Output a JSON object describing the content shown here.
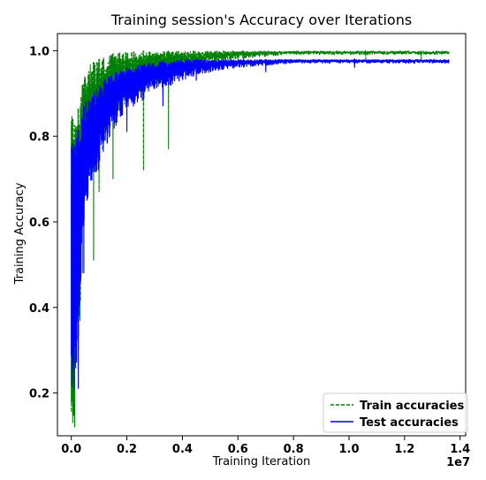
{
  "chart_data": {
    "type": "line",
    "title": "Training session's Accuracy over Iterations",
    "xlabel": "Training Iteration",
    "ylabel": "Training Accuracy",
    "x_offset_label": "1e7",
    "xlim": [
      -0.05,
      1.42
    ],
    "ylim": [
      0.1,
      1.04
    ],
    "x_ticks": [
      0.0,
      0.2,
      0.4,
      0.6,
      0.8,
      1.0,
      1.2,
      1.4
    ],
    "x_tick_labels": [
      "0.0",
      "0.2",
      "0.4",
      "0.6",
      "0.8",
      "1.0",
      "1.2",
      "1.4"
    ],
    "y_ticks": [
      0.2,
      0.4,
      0.6,
      0.8,
      1.0
    ],
    "y_tick_labels": [
      "0.2",
      "0.4",
      "0.6",
      "0.8",
      "1.0"
    ],
    "legend_position": "lower-right",
    "series": [
      {
        "name": "Train accuracies",
        "color": "#008000",
        "linestyle": "dashed",
        "x": [
          0.0,
          0.01,
          0.02,
          0.03,
          0.04,
          0.05,
          0.07,
          0.1,
          0.13,
          0.16,
          0.2,
          0.25,
          0.3,
          0.4,
          0.5,
          0.6,
          0.7,
          0.8,
          0.9,
          1.0,
          1.1,
          1.2,
          1.3,
          1.36
        ],
        "lower": [
          0.12,
          0.15,
          0.52,
          0.3,
          0.6,
          0.65,
          0.7,
          0.74,
          0.8,
          0.84,
          0.88,
          0.9,
          0.92,
          0.95,
          0.97,
          0.98,
          0.985,
          0.99,
          0.99,
          0.99,
          0.99,
          0.99,
          0.99,
          0.99
        ],
        "upper": [
          0.86,
          0.82,
          0.85,
          0.88,
          0.92,
          0.95,
          0.97,
          0.98,
          0.99,
          0.995,
          1.0,
          1.0,
          1.0,
          1.0,
          1.0,
          1.0,
          1.0,
          1.0,
          1.0,
          1.0,
          1.0,
          1.0,
          1.0,
          1.0
        ],
        "dips": [
          [
            0.005,
            0.13
          ],
          [
            0.012,
            0.12
          ],
          [
            0.025,
            0.3
          ],
          [
            0.04,
            0.48
          ],
          [
            0.08,
            0.51
          ],
          [
            0.1,
            0.67
          ],
          [
            0.15,
            0.7
          ],
          [
            0.26,
            0.72
          ],
          [
            0.35,
            0.77
          ],
          [
            0.44,
            0.96
          ],
          [
            0.62,
            0.96
          ],
          [
            1.06,
            0.98
          ],
          [
            1.26,
            0.98
          ]
        ]
      },
      {
        "name": "Test accuracies",
        "color": "#0000ff",
        "linestyle": "solid",
        "x": [
          0.0,
          0.01,
          0.02,
          0.03,
          0.04,
          0.05,
          0.07,
          0.1,
          0.13,
          0.16,
          0.2,
          0.25,
          0.3,
          0.4,
          0.5,
          0.6,
          0.7,
          0.8,
          0.9,
          1.0,
          1.1,
          1.2,
          1.3,
          1.36
        ],
        "lower": [
          0.2,
          0.22,
          0.21,
          0.4,
          0.55,
          0.62,
          0.68,
          0.72,
          0.78,
          0.82,
          0.86,
          0.88,
          0.9,
          0.93,
          0.95,
          0.96,
          0.965,
          0.97,
          0.97,
          0.97,
          0.97,
          0.97,
          0.97,
          0.97
        ],
        "upper": [
          0.8,
          0.78,
          0.8,
          0.83,
          0.86,
          0.88,
          0.9,
          0.92,
          0.94,
          0.95,
          0.96,
          0.97,
          0.975,
          0.98,
          0.98,
          0.98,
          0.98,
          0.98,
          0.98,
          0.98,
          0.98,
          0.98,
          0.98,
          0.98
        ],
        "dips": [
          [
            0.01,
            0.21
          ],
          [
            0.025,
            0.21
          ],
          [
            0.045,
            0.48
          ],
          [
            0.2,
            0.81
          ],
          [
            0.33,
            0.87
          ],
          [
            0.45,
            0.93
          ],
          [
            0.7,
            0.95
          ],
          [
            1.02,
            0.96
          ]
        ]
      }
    ]
  }
}
